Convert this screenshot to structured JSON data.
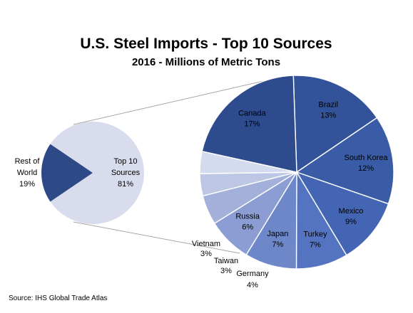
{
  "chart_data": [
    {
      "type": "pie",
      "title": "U.S. Steel Imports - Top 10 Sources",
      "subtitle": "2016 - Millions of Metric Tons",
      "slices": [
        {
          "label_lines": [
            "Top 10",
            "Sources"
          ],
          "value_label": "81%",
          "value": 81,
          "color": "#d9dcec"
        },
        {
          "label_lines": [
            "Rest of",
            "World"
          ],
          "value_label": "19%",
          "value": 19,
          "color": "#2e4a86"
        }
      ]
    },
    {
      "type": "pie",
      "slices": [
        {
          "label": "Brazil",
          "value_label": "13%",
          "value": 13,
          "color": "#32529a"
        },
        {
          "label": "South Korea",
          "value_label": "12%",
          "value": 12,
          "color": "#3a5ba6"
        },
        {
          "label": "Mexico",
          "value_label": "9%",
          "value": 9,
          "color": "#4465b4"
        },
        {
          "label": "Turkey",
          "value_label": "7%",
          "value": 7,
          "color": "#5474c2"
        },
        {
          "label": "Japan",
          "value_label": "7%",
          "value": 7,
          "color": "#6d87c9"
        },
        {
          "label": "Russia",
          "value_label": "6%",
          "value": 6,
          "color": "#8b9dd2"
        },
        {
          "label": "Germany",
          "value_label": "4%",
          "value": 4,
          "color": "#a3b1da"
        },
        {
          "label": "Taiwan",
          "value_label": "3%",
          "value": 3,
          "color": "#bdc6e4"
        },
        {
          "label": "Vietnam",
          "value_label": "3%",
          "value": 3,
          "color": "#d5dbee"
        },
        {
          "label": "Canada",
          "value_label": "17%",
          "value": 17,
          "color": "#2d4b8d"
        }
      ]
    }
  ],
  "source": "Source: IHS Global Trade Atlas"
}
